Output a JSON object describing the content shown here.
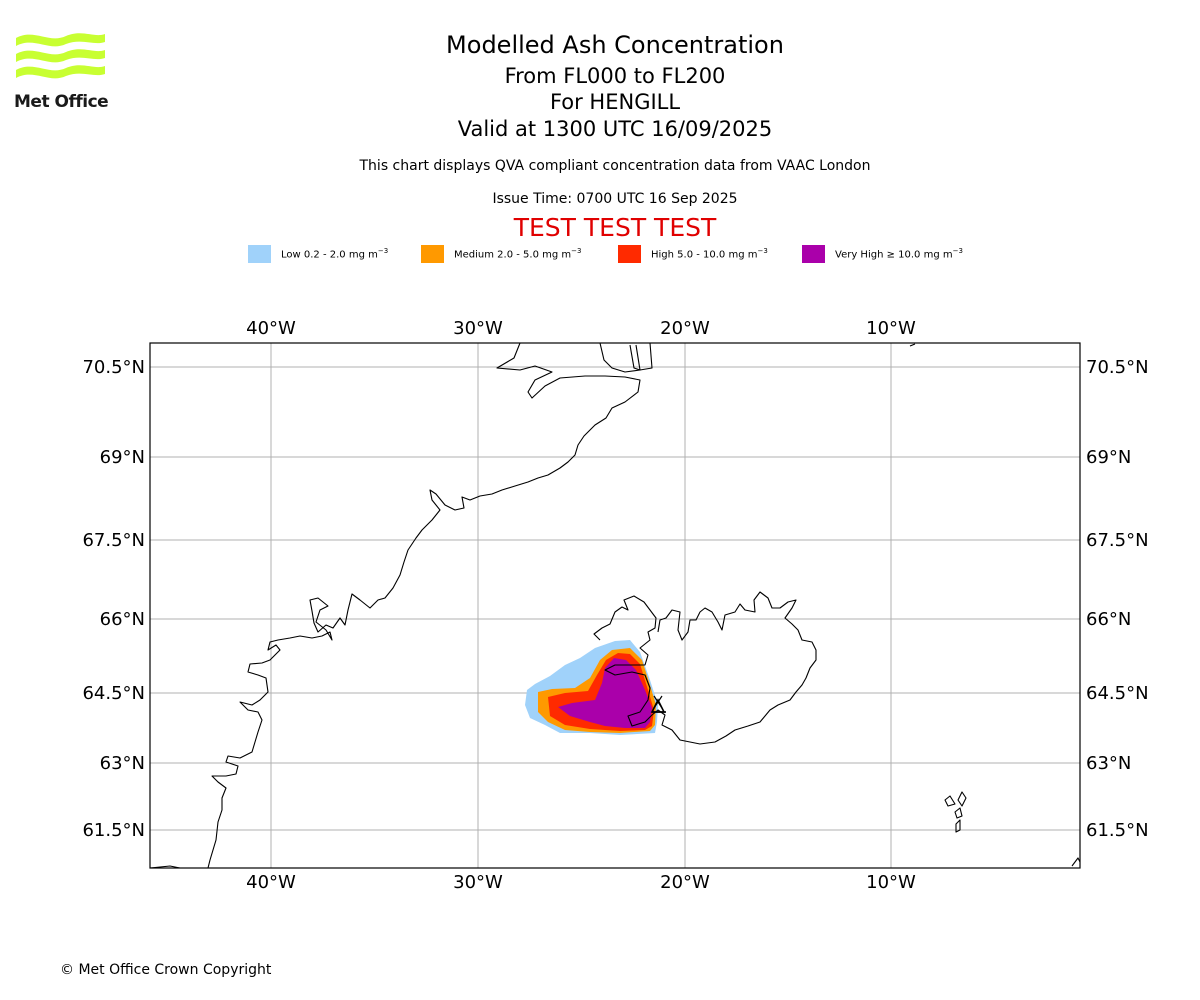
{
  "logo": {
    "text": "Met Office",
    "color": "#c8ff32"
  },
  "title": {
    "main": "Modelled Ash Concentration",
    "levels": "From FL000 to FL200",
    "volcano": "For HENGILL",
    "valid": "Valid at 1300 UTC 16/09/2025"
  },
  "subtitle": "This chart displays QVA compliant concentration data from VAAC London",
  "issue_time": "Issue Time: 0700 UTC 16 Sep 2025",
  "test_banner": "TEST TEST TEST",
  "legend": [
    {
      "label": "Low 0.2 - 2.0 mg m",
      "unit_exp": "−3",
      "color": "#a0d2fa"
    },
    {
      "label": "Medium 2.0 - 5.0 mg m",
      "unit_exp": "−3",
      "color": "#ff9900"
    },
    {
      "label": "High 5.0 - 10.0 mg m",
      "unit_exp": "−3",
      "color": "#ff2a00"
    },
    {
      "label": "Very High ≥ 10.0 mg m",
      "unit_exp": "−3",
      "color": "#aa00aa"
    }
  ],
  "map": {
    "lon_labels": [
      "40°W",
      "30°W",
      "20°W",
      "10°W"
    ],
    "lat_labels": [
      "70.5°N",
      "69°N",
      "67.5°N",
      "66°N",
      "64.5°N",
      "63°N",
      "61.5°N"
    ],
    "volcano_symbol": "triangle",
    "line_color": "#000000",
    "grid_color": "#b0b0b0"
  },
  "copyright": "© Met Office Crown Copyright"
}
